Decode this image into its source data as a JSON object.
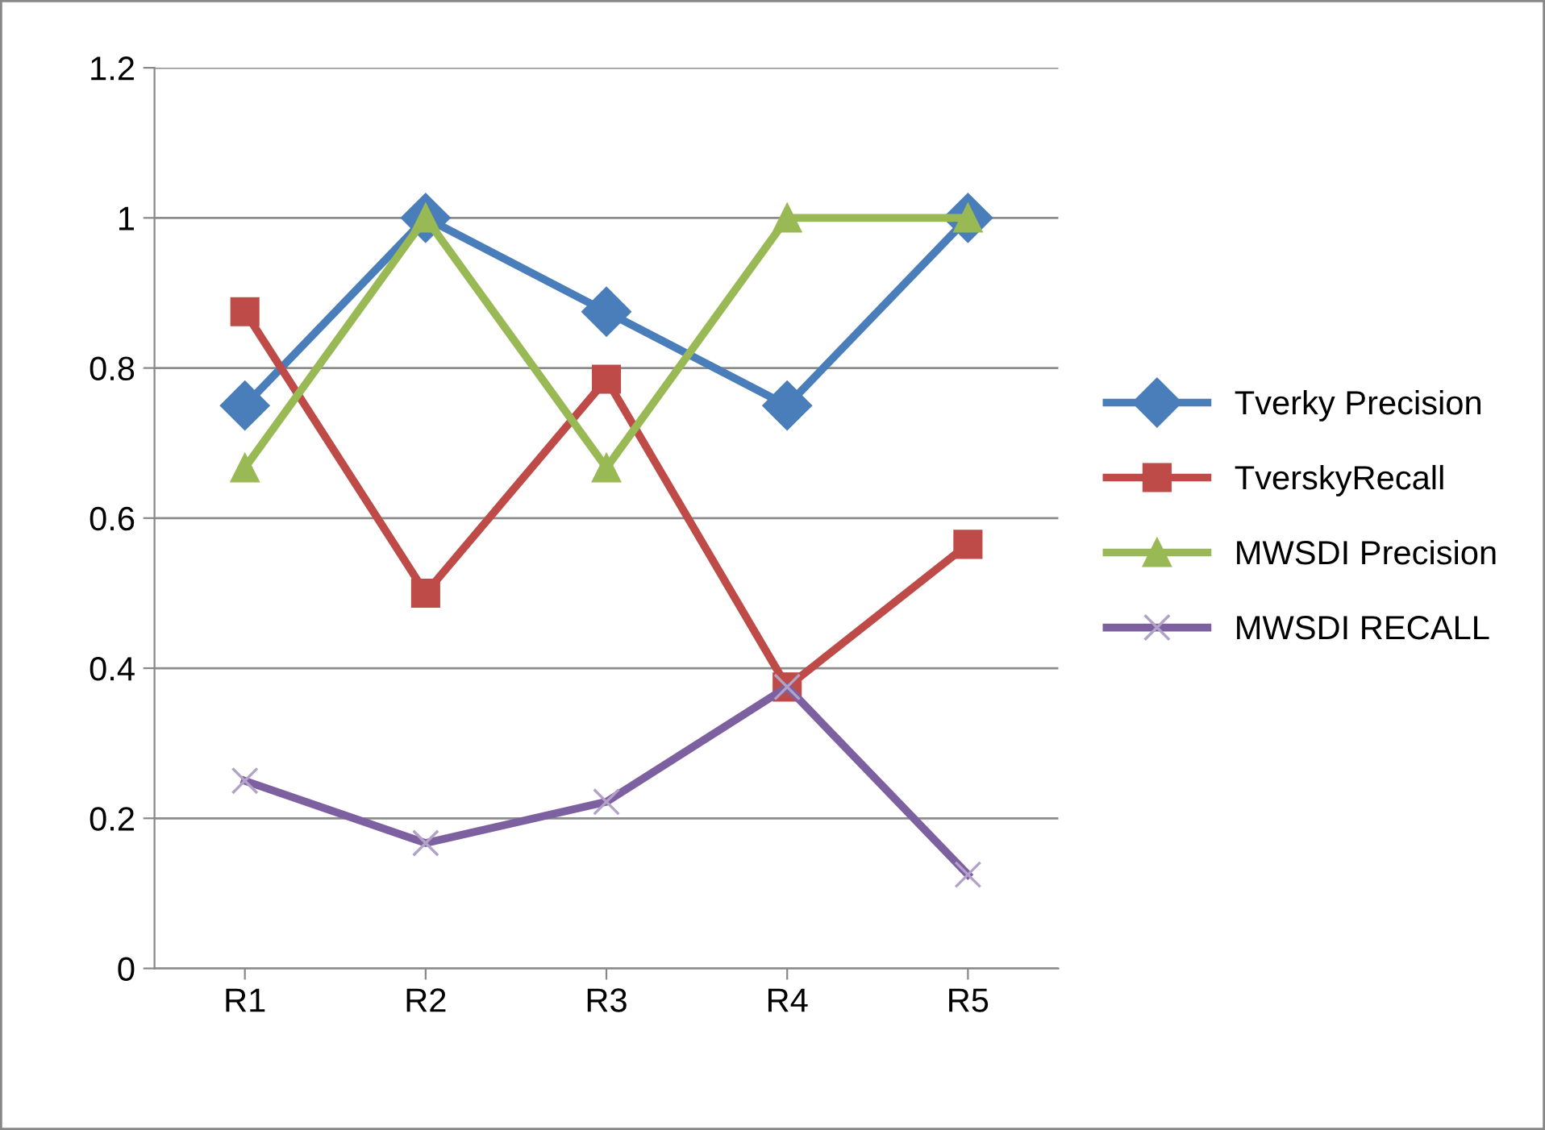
{
  "chart_data": {
    "type": "line",
    "categories": [
      "R1",
      "R2",
      "R3",
      "R4",
      "R5"
    ],
    "series": [
      {
        "name": "Tverky Precision",
        "color": "#4a7ebb",
        "marker": "diamond",
        "values": [
          0.75,
          1,
          0.875,
          0.75,
          1
        ]
      },
      {
        "name": "TverskyRecall",
        "color": "#be4b48",
        "marker": "square",
        "values": [
          0.875,
          0.5,
          0.785,
          0.375,
          0.565
        ]
      },
      {
        "name": "MWSDI Precision",
        "color": "#98b954",
        "marker": "triangle",
        "values": [
          0.667,
          1,
          0.667,
          1,
          1
        ]
      },
      {
        "name": "MWSDI RECALL",
        "color": "#7d60a0",
        "marker": "cross",
        "values": [
          0.25,
          0.167,
          0.222,
          0.375,
          0.125
        ]
      }
    ],
    "ylim": [
      0,
      1.2
    ],
    "yticks": [
      0,
      0.2,
      0.4,
      0.6,
      0.8,
      1,
      1.2
    ],
    "grid": "y",
    "legend": "right"
  }
}
